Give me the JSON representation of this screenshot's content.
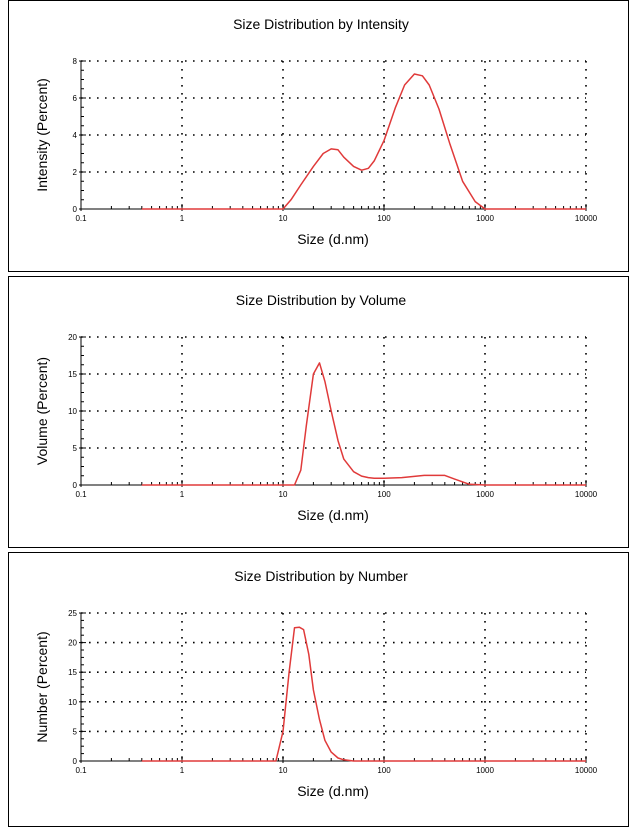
{
  "colors": {
    "curve": "#e03a3a",
    "axis": "#000000",
    "grid": "#000000",
    "background": "#ffffff"
  },
  "chart_data": [
    {
      "type": "line",
      "title": "Size Distribution by Intensity",
      "xlabel": "Size (d.nm)",
      "ylabel": "Intensity (Percent)",
      "x_scale": "log",
      "xlim": [
        0.1,
        10000
      ],
      "ylim": [
        0,
        8
      ],
      "xticks": [
        "0.1",
        "1",
        "10",
        "100",
        "1000",
        "10000"
      ],
      "yticks": [
        "0",
        "2",
        "4",
        "6",
        "8"
      ],
      "grid": true,
      "series": [
        {
          "x": [
            0.4,
            5,
            10,
            12,
            15,
            20,
            25,
            30,
            35,
            40,
            50,
            60,
            70,
            80,
            100,
            130,
            160,
            200,
            240,
            280,
            350,
            450,
            600,
            800,
            1000,
            2000,
            10000
          ],
          "y": [
            0,
            0,
            0,
            0.5,
            1.3,
            2.3,
            3.0,
            3.25,
            3.2,
            2.8,
            2.3,
            2.1,
            2.2,
            2.6,
            3.7,
            5.5,
            6.7,
            7.3,
            7.2,
            6.7,
            5.4,
            3.5,
            1.5,
            0.4,
            0,
            0,
            0
          ]
        }
      ]
    },
    {
      "type": "line",
      "title": "Size Distribution by Volume",
      "xlabel": "Size (d.nm)",
      "ylabel": "Volume (Percent)",
      "x_scale": "log",
      "xlim": [
        0.1,
        10000
      ],
      "ylim": [
        0,
        20
      ],
      "xticks": [
        "0.1",
        "1",
        "10",
        "100",
        "1000",
        "10000"
      ],
      "yticks": [
        "0",
        "5",
        "10",
        "15",
        "20"
      ],
      "grid": true,
      "series": [
        {
          "x": [
            0.4,
            5,
            13,
            15,
            17,
            20,
            23,
            26,
            30,
            35,
            40,
            50,
            60,
            70,
            80,
            100,
            150,
            250,
            400,
            500,
            700,
            1000,
            10000
          ],
          "y": [
            0,
            0,
            0,
            2,
            8,
            15,
            16.5,
            14,
            10,
            6,
            3.5,
            1.8,
            1.2,
            1.0,
            0.9,
            0.9,
            1.0,
            1.3,
            1.3,
            0.8,
            0.1,
            0,
            0
          ]
        }
      ]
    },
    {
      "type": "line",
      "title": "Size Distribution by Number",
      "xlabel": "Size (d.nm)",
      "ylabel": "Number (Percent)",
      "x_scale": "log",
      "xlim": [
        0.1,
        10000
      ],
      "ylim": [
        0,
        25
      ],
      "xticks": [
        "0.1",
        "1",
        "10",
        "100",
        "1000",
        "10000"
      ],
      "yticks": [
        "0",
        "5",
        "10",
        "15",
        "20",
        "25"
      ],
      "grid": true,
      "series": [
        {
          "x": [
            0.4,
            8.5,
            10,
            11.5,
            13,
            14.5,
            16,
            18,
            20,
            23,
            26,
            30,
            35,
            40,
            50,
            70,
            100,
            10000
          ],
          "y": [
            0,
            0,
            5,
            15,
            22.5,
            22.6,
            22.2,
            18,
            12,
            7,
            3.5,
            1.5,
            0.5,
            0.2,
            0,
            0,
            0,
            0
          ]
        }
      ]
    }
  ]
}
